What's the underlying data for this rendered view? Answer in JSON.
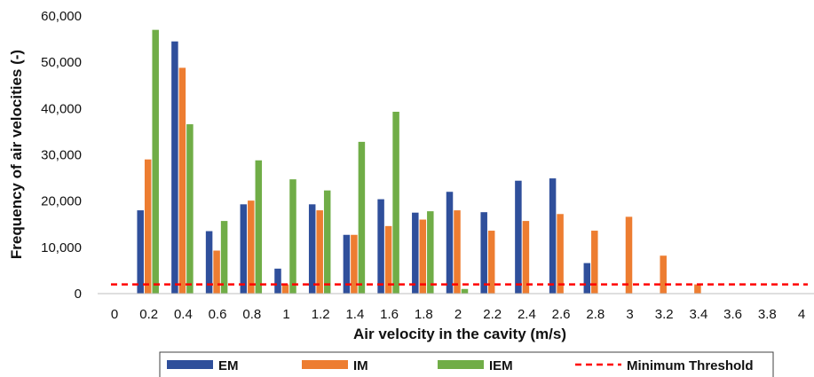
{
  "chart_data": {
    "type": "bar",
    "xlabel": "Air velocity in the cavity (m/s)",
    "ylabel": "Frequency of air velocities (-)",
    "ylim": [
      0,
      60000
    ],
    "y_ticks": [
      "0",
      "10,000",
      "20,000",
      "30,000",
      "40,000",
      "50,000",
      "60,000"
    ],
    "grid": false,
    "legend_position": "bottom",
    "categories": [
      "0",
      "0.2",
      "0.4",
      "0.6",
      "0.8",
      "1",
      "1.2",
      "1.4",
      "1.6",
      "1.8",
      "2",
      "2.2",
      "2.4",
      "2.6",
      "2.8",
      "3",
      "3.2",
      "3.4",
      "3.6",
      "3.8",
      "4"
    ],
    "series": [
      {
        "name": "EM",
        "color": "#2f4f9b",
        "values": [
          0,
          18000,
          54500,
          13500,
          19300,
          5400,
          19300,
          12700,
          20400,
          17500,
          22000,
          17600,
          24400,
          24900,
          6600,
          0,
          0,
          0,
          0,
          0,
          0
        ]
      },
      {
        "name": "IM",
        "color": "#ed7d31",
        "values": [
          0,
          29000,
          48800,
          9300,
          20100,
          2000,
          18000,
          12700,
          14600,
          16000,
          18000,
          13600,
          15700,
          17200,
          13600,
          16600,
          8200,
          2000,
          0,
          0,
          0
        ]
      },
      {
        "name": "IEM",
        "color": "#70ad47",
        "values": [
          0,
          57000,
          36600,
          15700,
          28800,
          24700,
          22300,
          32800,
          39300,
          17800,
          1000,
          0,
          0,
          0,
          0,
          0,
          0,
          0,
          0,
          0,
          0
        ]
      }
    ],
    "threshold": {
      "name": "Minimum Threshold",
      "value": 2000,
      "color": "#ff0000",
      "style": "dashed"
    }
  }
}
